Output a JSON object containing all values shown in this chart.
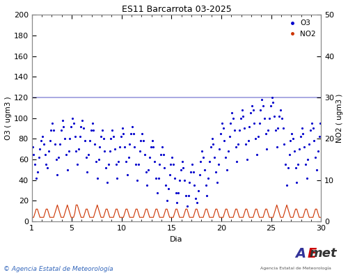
{
  "title": "ES11 Barcarrota 03-2025",
  "xlabel": "Dia",
  "ylabel_left": "O3 ( ugm3 )",
  "ylabel_right": "NO2 ( ugm3 )",
  "ylim_left": [
    0,
    200
  ],
  "ylim_right": [
    0,
    50
  ],
  "xlim": [
    1,
    30
  ],
  "hline_value": 120,
  "hline_color": "#9999dd",
  "o3_color": "#0000cc",
  "no2_color": "#cc3300",
  "copyright_text": "© Agencia Estatal de Meteorología",
  "o3_data": [
    38,
    52,
    60,
    68,
    72,
    65,
    55,
    42,
    48,
    62,
    70,
    78,
    82,
    75,
    65,
    55,
    52,
    68,
    78,
    88,
    95,
    88,
    75,
    60,
    45,
    62,
    75,
    88,
    98,
    92,
    80,
    65,
    50,
    68,
    80,
    92,
    100,
    95,
    82,
    68,
    55,
    70,
    82,
    92,
    98,
    90,
    78,
    62,
    48,
    65,
    78,
    88,
    95,
    88,
    75,
    58,
    42,
    60,
    72,
    82,
    88,
    80,
    68,
    52,
    38,
    55,
    68,
    80,
    88,
    82,
    70,
    55,
    42,
    58,
    72,
    82,
    90,
    85,
    72,
    58,
    45,
    62,
    75,
    85,
    92,
    85,
    72,
    55,
    40,
    55,
    68,
    78,
    85,
    78,
    65,
    48,
    35,
    50,
    62,
    72,
    78,
    72,
    58,
    42,
    28,
    42,
    55,
    65,
    72,
    65,
    52,
    35,
    20,
    32,
    45,
    55,
    62,
    55,
    42,
    28,
    18,
    28,
    40,
    50,
    58,
    52,
    40,
    25,
    15,
    25,
    38,
    48,
    55,
    48,
    35,
    22,
    18,
    30,
    45,
    58,
    68,
    62,
    50,
    35,
    25,
    42,
    58,
    72,
    80,
    75,
    62,
    48,
    38,
    55,
    70,
    85,
    95,
    90,
    78,
    62,
    50,
    68,
    82,
    95,
    105,
    100,
    88,
    72,
    58,
    75,
    88,
    100,
    108,
    102,
    90,
    75,
    60,
    78,
    92,
    105,
    112,
    108,
    95,
    80,
    65,
    82,
    95,
    108,
    118,
    112,
    100,
    85,
    70,
    88,
    100,
    112,
    120,
    115,
    102,
    88,
    72,
    90,
    102,
    108,
    100,
    90,
    75,
    55,
    35,
    52,
    65,
    78,
    85,
    80,
    68,
    52,
    38,
    55,
    70,
    82,
    90,
    85,
    72,
    55,
    42,
    60,
    75,
    88,
    95,
    90,
    78,
    62,
    50,
    68,
    82,
    95,
    105,
    100,
    88,
    72
  ],
  "no2_data": [
    2,
    2,
    1,
    1,
    1,
    1,
    2,
    3,
    3,
    2,
    1,
    1,
    1,
    1,
    2,
    3,
    3,
    2,
    1,
    1,
    1,
    1,
    2,
    3,
    4,
    3,
    2,
    1,
    1,
    1,
    2,
    3,
    4,
    3,
    2,
    1,
    1,
    1,
    2,
    4,
    4,
    3,
    2,
    1,
    1,
    1,
    2,
    3,
    3,
    2,
    1,
    1,
    1,
    1,
    2,
    3,
    4,
    3,
    2,
    1,
    1,
    1,
    2,
    3,
    3,
    2,
    1,
    1,
    1,
    1,
    2,
    3,
    3,
    2,
    1,
    1,
    1,
    1,
    2,
    3,
    3,
    2,
    1,
    1,
    1,
    1,
    2,
    3,
    3,
    2,
    1,
    1,
    1,
    1,
    2,
    3,
    3,
    2,
    1,
    1,
    1,
    1,
    2,
    3,
    3,
    2,
    1,
    1,
    1,
    1,
    2,
    3,
    3,
    2,
    1,
    1,
    1,
    1,
    2,
    3,
    3,
    2,
    1,
    1,
    1,
    1,
    2,
    3,
    3,
    2,
    1,
    1,
    1,
    1,
    2,
    3,
    3,
    2,
    1,
    1,
    1,
    1,
    2,
    3,
    3,
    2,
    1,
    1,
    1,
    1,
    2,
    3,
    3,
    2,
    1,
    1,
    1,
    1,
    2,
    3,
    3,
    2,
    1,
    1,
    1,
    1,
    2,
    3,
    3,
    2,
    1,
    1,
    1,
    1,
    2,
    3,
    3,
    2,
    1,
    1,
    1,
    1,
    2,
    3,
    3,
    2,
    1,
    1,
    1,
    1,
    2,
    3,
    3,
    2,
    1,
    1,
    1,
    1,
    2,
    3,
    4,
    3,
    2,
    1,
    1,
    1,
    2,
    3,
    4,
    3,
    2,
    1,
    1,
    1,
    2,
    3,
    3,
    2,
    1,
    1,
    1,
    1,
    2,
    3,
    3,
    2,
    1,
    1,
    1,
    1,
    2,
    3,
    3,
    2,
    1,
    1,
    1,
    1,
    2,
    3
  ]
}
